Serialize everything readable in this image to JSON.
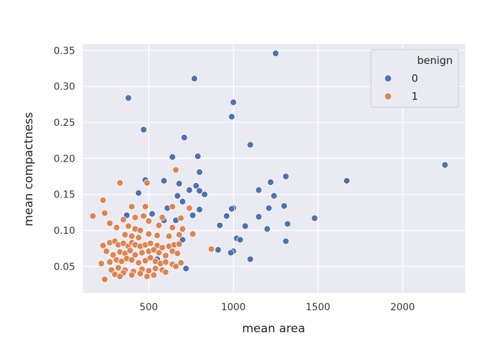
{
  "chart_data": {
    "type": "scatter",
    "title": "",
    "xlabel": "mean area",
    "ylabel": "mean compactness",
    "xlim": [
      110,
      2370
    ],
    "ylim": [
      0.013,
      0.359
    ],
    "xticks": [
      {
        "value": 500,
        "label": "500"
      },
      {
        "value": 1000,
        "label": "1000"
      },
      {
        "value": 1500,
        "label": "1500"
      },
      {
        "value": 2000,
        "label": "2000"
      }
    ],
    "yticks": [
      {
        "value": 0.05,
        "label": "0.05"
      },
      {
        "value": 0.1,
        "label": "0.10"
      },
      {
        "value": 0.15,
        "label": "0.15"
      },
      {
        "value": 0.2,
        "label": "0.20"
      },
      {
        "value": 0.25,
        "label": "0.25"
      },
      {
        "value": 0.3,
        "label": "0.30"
      },
      {
        "value": 0.35,
        "label": "0.35"
      }
    ],
    "grid": true,
    "legend": {
      "title": "benign",
      "placement": "top-right"
    },
    "series": [
      {
        "name": "0",
        "color": "#4c72b0",
        "points": [
          [
            1250,
            0.346
          ],
          [
            770,
            0.311
          ],
          [
            380,
            0.284
          ],
          [
            1000,
            0.278
          ],
          [
            990,
            0.258
          ],
          [
            470,
            0.24
          ],
          [
            710,
            0.229
          ],
          [
            1100,
            0.219
          ],
          [
            640,
            0.202
          ],
          [
            790,
            0.203
          ],
          [
            2250,
            0.191
          ],
          [
            800,
            0.181
          ],
          [
            1310,
            0.175
          ],
          [
            480,
            0.17
          ],
          [
            590,
            0.169
          ],
          [
            1670,
            0.169
          ],
          [
            1220,
            0.167
          ],
          [
            680,
            0.165
          ],
          [
            780,
            0.162
          ],
          [
            740,
            0.156
          ],
          [
            1150,
            0.156
          ],
          [
            800,
            0.155
          ],
          [
            440,
            0.152
          ],
          [
            830,
            0.15
          ],
          [
            670,
            0.148
          ],
          [
            1240,
            0.148
          ],
          [
            700,
            0.14
          ],
          [
            1300,
            0.134
          ],
          [
            610,
            0.131
          ],
          [
            1000,
            0.131
          ],
          [
            990,
            0.13
          ],
          [
            1210,
            0.131
          ],
          [
            800,
            0.129
          ],
          [
            370,
            0.121
          ],
          [
            520,
            0.123
          ],
          [
            760,
            0.121
          ],
          [
            960,
            0.12
          ],
          [
            1150,
            0.119
          ],
          [
            1480,
            0.117
          ],
          [
            590,
            0.114
          ],
          [
            660,
            0.114
          ],
          [
            1320,
            0.109
          ],
          [
            920,
            0.107
          ],
          [
            1070,
            0.106
          ],
          [
            1200,
            0.102
          ],
          [
            910,
            0.073
          ],
          [
            1020,
            0.089
          ],
          [
            1040,
            0.087
          ],
          [
            700,
            0.087
          ],
          [
            1310,
            0.085
          ],
          [
            1000,
            0.071
          ],
          [
            985,
            0.069
          ],
          [
            1100,
            0.06
          ],
          [
            720,
            0.047
          ],
          [
            550,
            0.06
          ]
        ]
      },
      {
        "name": "1",
        "color": "#dd8452",
        "points": [
          [
            170,
            0.12
          ],
          [
            230,
            0.142
          ],
          [
            330,
            0.166
          ],
          [
            490,
            0.166
          ],
          [
            660,
            0.184
          ],
          [
            240,
            0.124
          ],
          [
            400,
            0.133
          ],
          [
            480,
            0.133
          ],
          [
            640,
            0.133
          ],
          [
            740,
            0.131
          ],
          [
            270,
            0.11
          ],
          [
            350,
            0.115
          ],
          [
            420,
            0.118
          ],
          [
            470,
            0.12
          ],
          [
            500,
            0.113
          ],
          [
            580,
            0.118
          ],
          [
            690,
            0.117
          ],
          [
            310,
            0.104
          ],
          [
            380,
            0.106
          ],
          [
            420,
            0.102
          ],
          [
            450,
            0.1
          ],
          [
            560,
            0.107
          ],
          [
            640,
            0.104
          ],
          [
            700,
            0.102
          ],
          [
            360,
            0.094
          ],
          [
            400,
            0.092
          ],
          [
            440,
            0.09
          ],
          [
            500,
            0.095
          ],
          [
            550,
            0.093
          ],
          [
            620,
            0.092
          ],
          [
            680,
            0.094
          ],
          [
            760,
            0.095
          ],
          [
            230,
            0.079
          ],
          [
            270,
            0.083
          ],
          [
            300,
            0.085
          ],
          [
            320,
            0.08
          ],
          [
            350,
            0.082
          ],
          [
            380,
            0.078
          ],
          [
            400,
            0.083
          ],
          [
            420,
            0.08
          ],
          [
            450,
            0.078
          ],
          [
            480,
            0.08
          ],
          [
            510,
            0.082
          ],
          [
            550,
            0.079
          ],
          [
            580,
            0.076
          ],
          [
            620,
            0.078
          ],
          [
            650,
            0.08
          ],
          [
            680,
            0.081
          ],
          [
            250,
            0.071
          ],
          [
            290,
            0.066
          ],
          [
            330,
            0.07
          ],
          [
            360,
            0.068
          ],
          [
            390,
            0.072
          ],
          [
            420,
            0.066
          ],
          [
            460,
            0.069
          ],
          [
            500,
            0.071
          ],
          [
            530,
            0.073
          ],
          [
            560,
            0.069
          ],
          [
            600,
            0.065
          ],
          [
            640,
            0.071
          ],
          [
            670,
            0.068
          ],
          [
            870,
            0.074
          ],
          [
            220,
            0.054
          ],
          [
            270,
            0.056
          ],
          [
            310,
            0.059
          ],
          [
            340,
            0.057
          ],
          [
            370,
            0.061
          ],
          [
            400,
            0.059
          ],
          [
            440,
            0.055
          ],
          [
            480,
            0.058
          ],
          [
            510,
            0.062
          ],
          [
            540,
            0.057
          ],
          [
            570,
            0.054
          ],
          [
            600,
            0.056
          ],
          [
            640,
            0.053
          ],
          [
            690,
            0.055
          ],
          [
            280,
            0.045
          ],
          [
            320,
            0.048
          ],
          [
            360,
            0.045
          ],
          [
            410,
            0.043
          ],
          [
            460,
            0.046
          ],
          [
            500,
            0.044
          ],
          [
            540,
            0.047
          ],
          [
            580,
            0.045
          ],
          [
            300,
            0.039
          ],
          [
            350,
            0.041
          ],
          [
            400,
            0.038
          ],
          [
            450,
            0.04
          ],
          [
            490,
            0.036
          ],
          [
            530,
            0.038
          ],
          [
            240,
            0.032
          ],
          [
            330,
            0.036
          ],
          [
            600,
            0.042
          ],
          [
            660,
            0.05
          ]
        ]
      }
    ]
  }
}
